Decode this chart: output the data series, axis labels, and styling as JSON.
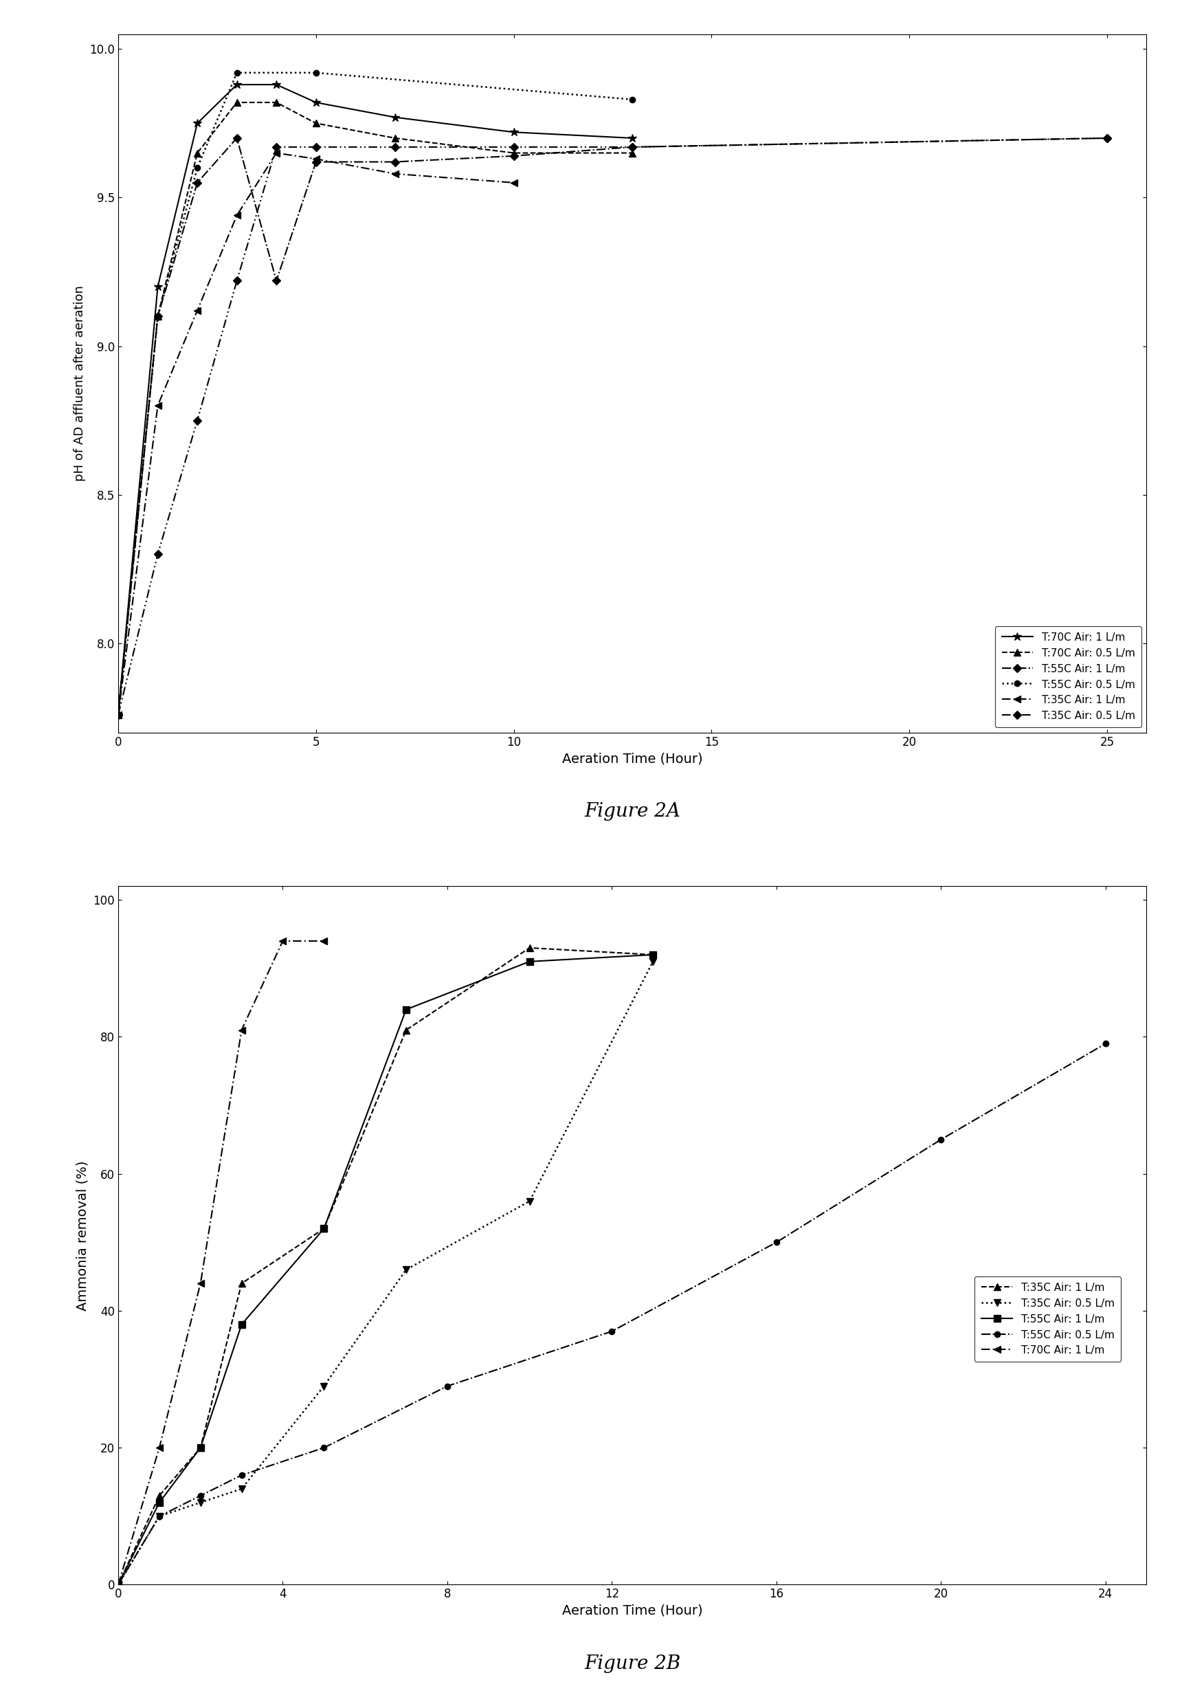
{
  "fig2a": {
    "title": "Figure 2A",
    "xlabel": "Aeration Time (Hour)",
    "ylabel": "pH of AD affluent after aeration",
    "xlim": [
      0,
      26
    ],
    "ylim": [
      7.7,
      10.05
    ],
    "xticks": [
      0,
      5,
      10,
      15,
      20,
      25
    ],
    "yticks": [
      8.0,
      8.5,
      9.0,
      9.5,
      10.0
    ],
    "series": [
      {
        "label": "T:70C Air: 1 L/m",
        "x": [
          0,
          1,
          2,
          3,
          4,
          5,
          7,
          10,
          13
        ],
        "y": [
          7.76,
          9.2,
          9.75,
          9.88,
          9.88,
          9.82,
          9.77,
          9.72,
          9.7
        ],
        "ls": "-",
        "mk": "*",
        "ms": 9,
        "lw": 1.5
      },
      {
        "label": "T:70C Air: 0.5 L/m",
        "x": [
          0,
          1,
          2,
          3,
          4,
          5,
          7,
          10,
          13
        ],
        "y": [
          7.76,
          9.1,
          9.65,
          9.82,
          9.82,
          9.75,
          9.7,
          9.65,
          9.65
        ],
        "ls": "--",
        "mk": "^",
        "ms": 7,
        "lw": 1.5
      },
      {
        "label": "T:55C Air: 1 L/m",
        "x": [
          0,
          1,
          2,
          3,
          4,
          5,
          7,
          10,
          13,
          25
        ],
        "y": [
          7.76,
          9.1,
          9.55,
          9.7,
          9.22,
          9.62,
          9.62,
          9.64,
          9.67,
          9.7
        ],
        "ls": "-.",
        "mk": "D",
        "ms": 6,
        "lw": 1.5
      },
      {
        "label": "T:55C Air: 0.5 L/m",
        "x": [
          0,
          1,
          2,
          3,
          5,
          13
        ],
        "y": [
          7.76,
          9.1,
          9.6,
          9.92,
          9.92,
          9.83
        ],
        "ls": ":",
        "mk": "o",
        "ms": 6,
        "lw": 1.8
      },
      {
        "label": "T:35C Air: 1 L/m",
        "x": [
          0,
          1,
          2,
          3,
          4,
          5,
          7,
          10
        ],
        "y": [
          7.76,
          8.8,
          9.12,
          9.44,
          9.65,
          9.63,
          9.58,
          9.55
        ],
        "ls": "dashdot_long",
        "mk": "<",
        "ms": 7,
        "lw": 1.5
      },
      {
        "label": "T:35C Air: 0.5 L/m",
        "x": [
          0,
          1,
          2,
          3,
          4,
          5,
          7,
          10,
          13,
          25
        ],
        "y": [
          7.76,
          8.3,
          8.75,
          9.22,
          9.67,
          9.67,
          9.67,
          9.67,
          9.67,
          9.7
        ],
        "ls": "dashdotdot",
        "mk": "D",
        "ms": 6,
        "lw": 1.5
      }
    ]
  },
  "fig2b": {
    "title": "Figure 2B",
    "xlabel": "Aeration Time (Hour)",
    "ylabel": "Ammonia removal (%)",
    "xlim": [
      0,
      25
    ],
    "ylim": [
      0,
      102
    ],
    "xticks": [
      0,
      4,
      8,
      12,
      16,
      20,
      24
    ],
    "yticks": [
      0,
      20,
      40,
      60,
      80,
      100
    ],
    "series": [
      {
        "label": "T:35C Air: 1 L/m",
        "x": [
          0,
          1,
          2,
          3,
          5,
          7,
          10,
          13
        ],
        "y": [
          0,
          13,
          20,
          44,
          52,
          81,
          93,
          92
        ],
        "ls": "--",
        "mk": "^",
        "ms": 7,
        "lw": 1.5
      },
      {
        "label": "T:35C Air: 0.5 L/m",
        "x": [
          0,
          1,
          2,
          3,
          5,
          7,
          10,
          13
        ],
        "y": [
          0,
          10,
          12,
          14,
          29,
          46,
          56,
          91
        ],
        "ls": ":",
        "mk": "v",
        "ms": 7,
        "lw": 1.8
      },
      {
        "label": "T:55C Air: 1 L/m",
        "x": [
          0,
          1,
          2,
          3,
          5,
          7,
          10,
          13
        ],
        "y": [
          0,
          12,
          20,
          38,
          52,
          84,
          91,
          92
        ],
        "ls": "-",
        "mk": "s",
        "ms": 7,
        "lw": 1.5
      },
      {
        "label": "T:55C Air: 0.5 L/m",
        "x": [
          0,
          1,
          2,
          3,
          5,
          8,
          12,
          16,
          20,
          24
        ],
        "y": [
          0,
          10,
          13,
          16,
          20,
          29,
          37,
          50,
          65,
          79
        ],
        "ls": "-.",
        "mk": "o",
        "ms": 6,
        "lw": 1.5
      },
      {
        "label": "T:70C Air: 1 L/m",
        "x": [
          0,
          1,
          2,
          3,
          4,
          5
        ],
        "y": [
          0,
          20,
          44,
          81,
          94,
          94
        ],
        "ls": "dashdot_long",
        "mk": "<",
        "ms": 7,
        "lw": 1.5
      }
    ]
  }
}
